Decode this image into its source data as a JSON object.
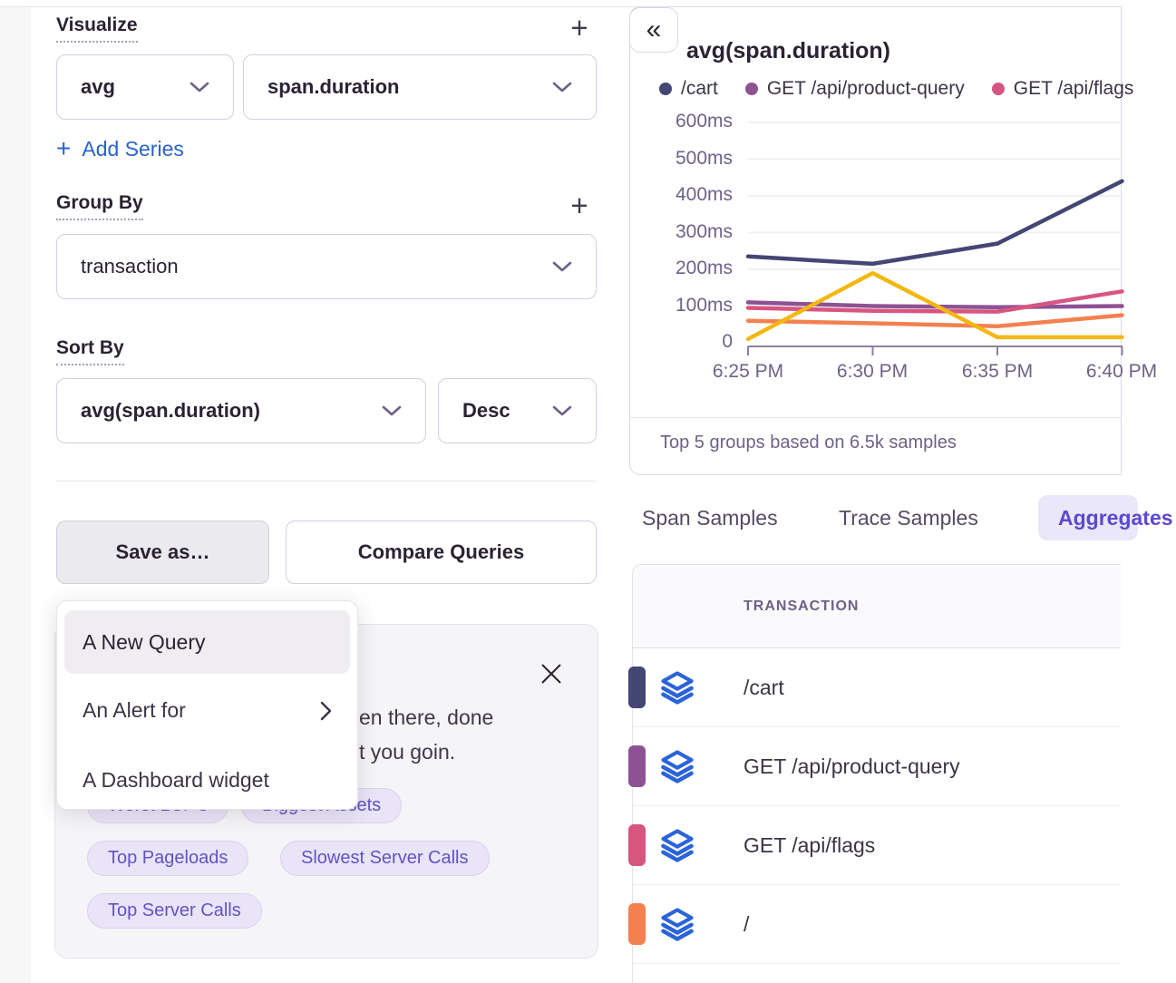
{
  "icons": {
    "add": "+",
    "collapse": "«",
    "ellipsis_note": ""
  },
  "left_panel": {
    "visualize": {
      "label": "Visualize",
      "aggregate": "avg",
      "field": "span.duration",
      "add_series": "Add Series",
      "plus": "+"
    },
    "group_by": {
      "label": "Group By",
      "value": "transaction",
      "plus": "+"
    },
    "sort_by": {
      "label": "Sort By",
      "field": "avg(span.duration)",
      "direction": "Desc"
    },
    "actions": {
      "save_as": "Save as…",
      "compare": "Compare Queries"
    },
    "save_menu": {
      "items": [
        "A New Query",
        "An Alert for",
        "A Dashboard widget"
      ]
    },
    "promo_card": {
      "visible_text_line1": "en there, done",
      "visible_text_line2": "t you goin.",
      "chips_row1": [
        "Worst LCP's",
        "Biggest Assets"
      ],
      "chips_row2": [
        "Top Pageloads",
        "Slowest Server Calls"
      ],
      "chips_row3": [
        "Top Server Calls"
      ]
    }
  },
  "chart_panel": {
    "title": "avg(span.duration)",
    "footer": "Top 5 groups based on 6.5k samples",
    "legend": [
      {
        "label": "/cart",
        "color": "#444674"
      },
      {
        "label": "GET /api/product-query",
        "color": "#8d5294"
      },
      {
        "label": "GET /api/flags",
        "color": "#d6567f"
      }
    ]
  },
  "chart_data": {
    "type": "line",
    "title": "avg(span.duration)",
    "unit": "ms",
    "x": [
      "6:25 PM",
      "6:30 PM",
      "6:35 PM",
      "6:40 PM"
    ],
    "yticks": [
      "600ms",
      "500ms",
      "400ms",
      "300ms",
      "200ms",
      "100ms",
      "0"
    ],
    "ylim": [
      0,
      620
    ],
    "grid": true,
    "legend_position": "top",
    "series": [
      {
        "name": "/cart",
        "color": "#444674",
        "values": [
          235,
          215,
          270,
          440
        ]
      },
      {
        "name": "GET /api/product-query",
        "color": "#8d5294",
        "values": [
          110,
          100,
          97,
          100
        ]
      },
      {
        "name": "GET /api/flags",
        "color": "#d6567f",
        "values": [
          95,
          87,
          85,
          140
        ]
      },
      {
        "name": "/",
        "color": "#f38150",
        "values": [
          60,
          53,
          45,
          75
        ]
      },
      {
        "name": "",
        "color": "#f2b712",
        "values": [
          10,
          190,
          15,
          15
        ]
      }
    ],
    "caption": "Top 5 groups based on 6.5k samples"
  },
  "tabs": {
    "span_samples": "Span Samples",
    "trace_samples": "Trace Samples",
    "aggregates": "Aggregates"
  },
  "table": {
    "header": "TRANSACTION",
    "rows": [
      {
        "label": "/cart",
        "color": "#444674"
      },
      {
        "label": "GET /api/product-query",
        "color": "#8d5294"
      },
      {
        "label": "GET /api/flags",
        "color": "#d6567f"
      },
      {
        "label": "/",
        "color": "#f38150"
      }
    ]
  }
}
